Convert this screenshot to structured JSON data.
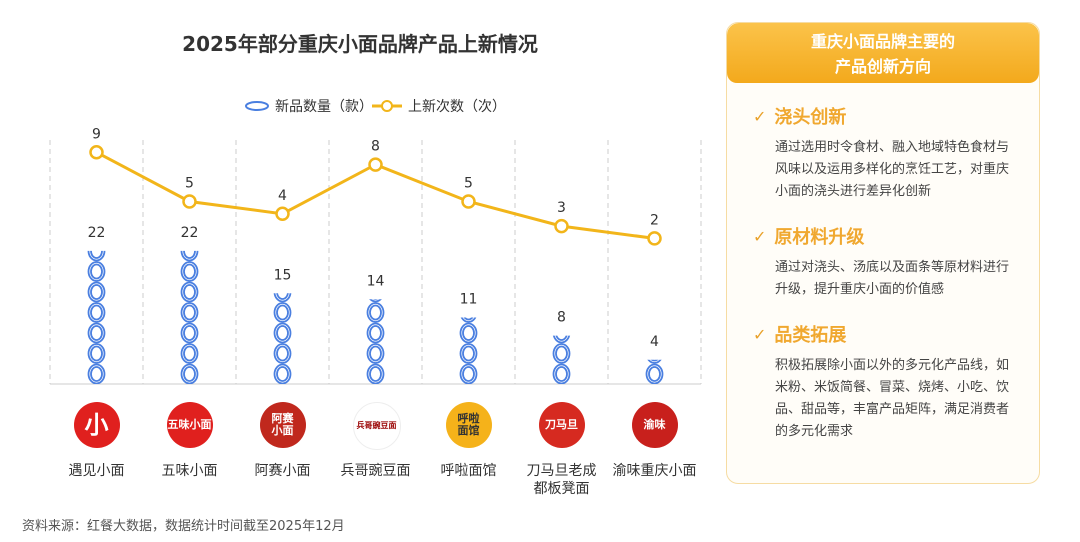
{
  "chart_data": {
    "type": "bar+line",
    "title": "2025年部分重庆小面品牌产品上新情况",
    "categories": [
      "遇见小面",
      "五味小面",
      "阿赛小面",
      "兵哥豌豆面",
      "呼啦面馆",
      "刀马旦老成都板凳面",
      "渝味重庆小面"
    ],
    "series": [
      {
        "name": "新品数量（款）",
        "type": "pictograph",
        "values": [
          22,
          22,
          15,
          14,
          11,
          8,
          4
        ]
      },
      {
        "name": "上新次数（次）",
        "type": "line",
        "values": [
          9,
          5,
          4,
          8,
          5,
          3,
          2
        ]
      }
    ],
    "legend": "top-center",
    "grid": "vertical dashed",
    "colors": {
      "bar": "#4a7fe0",
      "line": "#f2b51a"
    }
  },
  "brands_display": [
    "遇见小面",
    "五味小面",
    "阿赛小面",
    "兵哥豌豆面",
    "呼啦面馆",
    "刀马旦老成\n都板凳面",
    "渝味重庆小面"
  ],
  "logos": [
    "小",
    "五味小面",
    "阿赛\n小面",
    "兵哥豌豆面",
    "呼啦\n面馆",
    "刀马旦",
    "渝味"
  ],
  "source": "资料来源：红餐大数据，数据统计时间截至2025年12月",
  "panel": {
    "title1": "重庆小面品牌主要的",
    "title2": "产品创新方向",
    "check": "✓",
    "sections": [
      {
        "heading": "浇头创新",
        "text": "通过选用时令食材、融入地域特色食材与风味以及运用多样化的烹饪工艺，对重庆小面的浇头进行差异化创新"
      },
      {
        "heading": "原材料升级",
        "text": "通过对浇头、汤底以及面条等原材料进行升级，提升重庆小面的价值感"
      },
      {
        "heading": "品类拓展",
        "text": "积极拓展除小面以外的多元化产品线，如米粉、米饭简餐、冒菜、烧烤、小吃、饮品、甜品等，丰富产品矩阵，满足消费者的多元化需求"
      }
    ]
  }
}
